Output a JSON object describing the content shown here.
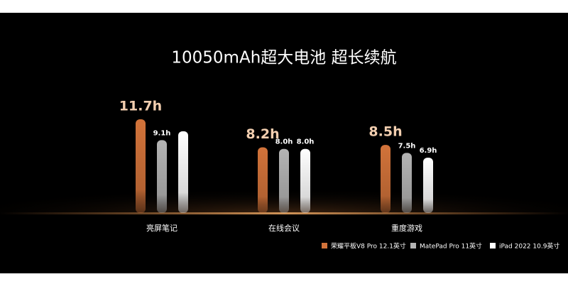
{
  "chart_data": {
    "type": "bar",
    "title": "10050mAh超大电池 超长续航",
    "categories": [
      "亮屏笔记",
      "在线会议",
      "重度游戏"
    ],
    "series": [
      {
        "name": "荣耀平板V8 Pro 12.1英寸",
        "color": "#d2733a",
        "values": [
          11.7,
          8.2,
          8.5
        ],
        "value_labels": [
          "11.7h",
          "8.2h",
          "8.5h"
        ]
      },
      {
        "name": "MatePad Pro 11英寸",
        "color": "#b4b4b4",
        "values": [
          9.1,
          8.0,
          7.5
        ],
        "value_labels": [
          "9.1h",
          "8.0h",
          "7.5h"
        ]
      },
      {
        "name": "iPad 2022 10.9英寸",
        "color": "#ffffff",
        "values": [
          10.2,
          8.0,
          6.9
        ],
        "value_labels": [
          null,
          "8.0h",
          "6.9h"
        ]
      }
    ],
    "ylim": [
      0,
      12
    ]
  }
}
